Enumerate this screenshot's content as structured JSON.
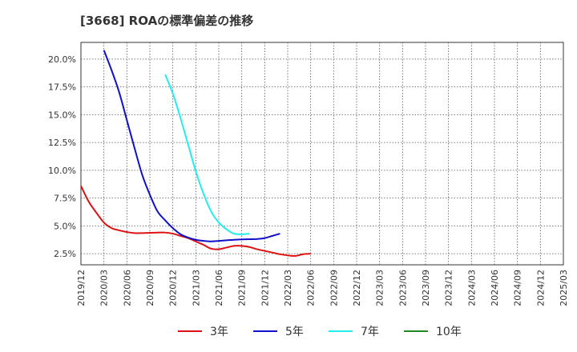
{
  "chart_data": {
    "type": "line",
    "title": "[3668]  ROAの標準偏差の推移",
    "xlabel": "",
    "ylabel": "",
    "x_ticks": [
      "2019/12",
      "2020/03",
      "2020/06",
      "2020/09",
      "2020/12",
      "2021/03",
      "2021/06",
      "2021/09",
      "2021/12",
      "2022/03",
      "2022/06",
      "2022/09",
      "2022/12",
      "2023/03",
      "2023/06",
      "2023/09",
      "2023/12",
      "2024/03",
      "2024/06",
      "2024/09",
      "2024/12",
      "2025/03"
    ],
    "y_ticks": [
      "2.5%",
      "5.0%",
      "7.5%",
      "10.0%",
      "12.5%",
      "15.0%",
      "17.5%",
      "20.0%"
    ],
    "ylim": [
      1.5,
      21.5
    ],
    "grid": true,
    "legend_position": "bottom",
    "series": [
      {
        "name": "3年",
        "color": "#dd1111",
        "start_index": 0,
        "values": [
          8.6,
          7.2,
          6.2,
          5.3,
          4.8,
          4.6,
          4.45,
          4.35,
          4.35,
          4.38,
          4.4,
          4.4,
          4.3,
          4.1,
          3.9,
          3.6,
          3.3,
          2.95,
          2.9,
          3.05,
          3.2,
          3.2,
          3.1,
          2.9,
          2.75,
          2.6,
          2.45,
          2.35,
          2.3,
          2.45,
          2.5
        ]
      },
      {
        "name": "5年",
        "color": "#1111cc",
        "start_index": 3,
        "values": [
          20.8,
          19.0,
          17.0,
          14.5,
          12.0,
          9.6,
          7.8,
          6.3,
          5.5,
          4.8,
          4.25,
          3.95,
          3.75,
          3.65,
          3.6,
          3.65,
          3.7,
          3.75,
          3.78,
          3.8,
          3.82,
          3.9,
          4.1,
          4.3
        ]
      },
      {
        "name": "7年",
        "color": "#22eeee",
        "start_index": 11,
        "values": [
          18.6,
          16.9,
          14.7,
          12.3,
          9.9,
          7.9,
          6.3,
          5.3,
          4.7,
          4.3,
          4.25,
          4.3
        ]
      },
      {
        "name": "10年",
        "color": "#228822",
        "start_index": 0,
        "values": []
      }
    ]
  }
}
